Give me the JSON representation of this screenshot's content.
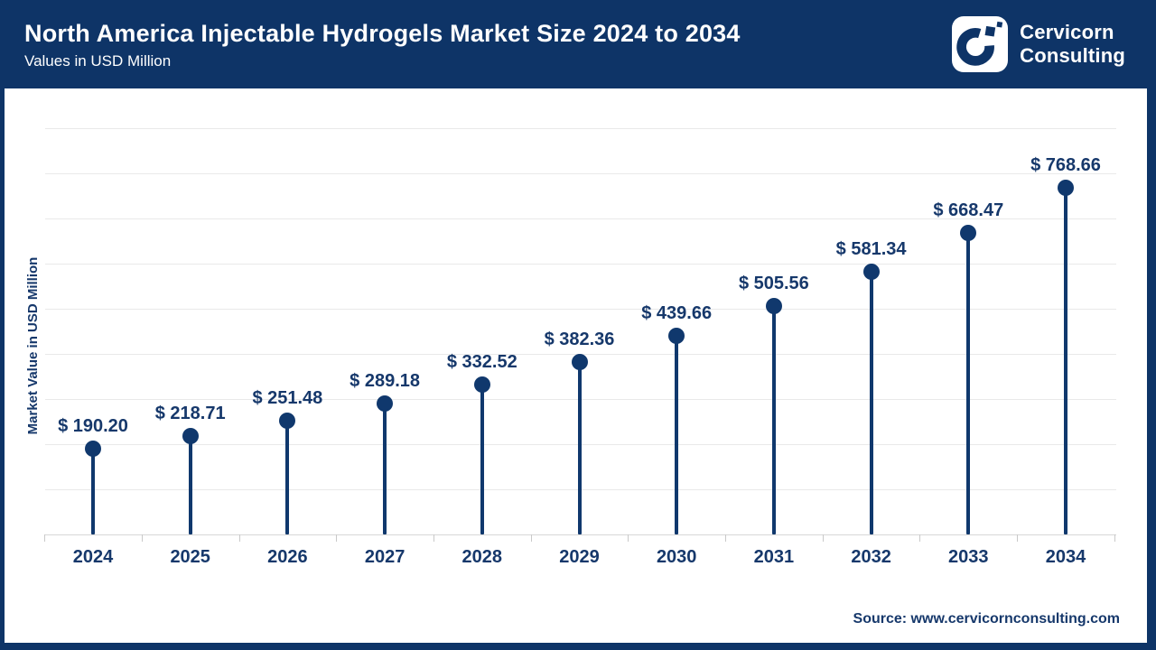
{
  "header": {
    "title": "North America Injectable Hydrogels Market Size 2024 to 2034",
    "subtitle": "Values in USD Million",
    "logo": {
      "line1": "Cervicorn",
      "line2": "Consulting"
    }
  },
  "footer": {
    "source": "Source: www.cervicornconsulting.com"
  },
  "colors": {
    "brand_navy": "#0e3467",
    "accent_navy": "#10386d",
    "label_navy": "#16386b",
    "gridline": "#e9e9e9",
    "axis_line": "#d8d8d8",
    "tick": "#c9c9c9",
    "background": "#ffffff"
  },
  "chart_data": {
    "type": "bar",
    "style": "lollipop",
    "title": "North America Injectable Hydrogels Market Size 2024 to 2034",
    "subtitle": "Values in USD Million",
    "categories": [
      "2024",
      "2025",
      "2026",
      "2027",
      "2028",
      "2029",
      "2030",
      "2031",
      "2032",
      "2033",
      "2034"
    ],
    "values": [
      190.2,
      218.71,
      251.48,
      289.18,
      332.52,
      382.36,
      439.66,
      505.56,
      581.34,
      668.47,
      768.66
    ],
    "point_labels": [
      "$ 190.20",
      "$ 218.71",
      "$ 251.48",
      "$ 289.18",
      "$ 332.52",
      "$ 382.36",
      "$ 439.66",
      "$ 505.56",
      "$ 581.34",
      "$ 668.47",
      "$ 768.66"
    ],
    "xlabel": "",
    "ylabel": "Market Value in USD Million",
    "ylim": [
      0,
      900
    ],
    "grid": "horizontal",
    "gridline_interval": 100,
    "y_tick_labels_shown": false,
    "legend": "none"
  }
}
